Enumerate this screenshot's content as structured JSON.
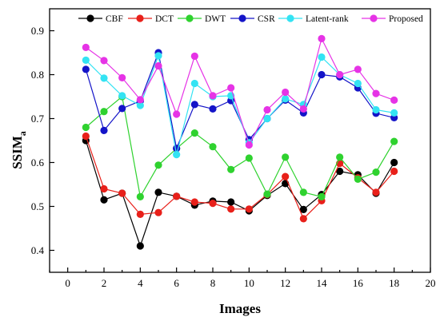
{
  "chart_data": {
    "type": "line",
    "xlabel": "Images",
    "ylabel": "SSIM",
    "ylabel_sub": "a",
    "xlim": [
      -1,
      20
    ],
    "ylim": [
      0.35,
      0.95
    ],
    "xticks": [
      "0",
      "2",
      "4",
      "6",
      "8",
      "10",
      "12",
      "14",
      "16",
      "18",
      "20"
    ],
    "yticks": [
      "0.4",
      "0.5",
      "0.6",
      "0.7",
      "0.8",
      "0.9"
    ],
    "grid": false,
    "legend_position": "top",
    "x": [
      1,
      2,
      3,
      4,
      5,
      6,
      7,
      8,
      9,
      10,
      11,
      12,
      13,
      14,
      15,
      16,
      17,
      18
    ],
    "series": [
      {
        "name": "CBF",
        "color": "#000000",
        "values": [
          0.65,
          0.515,
          0.53,
          0.41,
          0.532,
          0.523,
          0.503,
          0.512,
          0.51,
          0.49,
          0.525,
          0.552,
          0.493,
          0.527,
          0.58,
          0.572,
          0.53,
          0.6
        ]
      },
      {
        "name": "DCT",
        "color": "#e8201a",
        "values": [
          0.66,
          0.54,
          0.53,
          0.482,
          0.486,
          0.523,
          0.51,
          0.507,
          0.494,
          0.494,
          0.527,
          0.568,
          0.472,
          0.513,
          0.598,
          0.565,
          0.532,
          0.58
        ]
      },
      {
        "name": "DWT",
        "color": "#2fd22f",
        "values": [
          0.68,
          0.716,
          0.75,
          0.522,
          0.594,
          0.632,
          0.667,
          0.636,
          0.584,
          0.61,
          0.528,
          0.612,
          0.532,
          0.522,
          0.612,
          0.562,
          0.578,
          0.648
        ]
      },
      {
        "name": "CSR",
        "color": "#1414c8",
        "values": [
          0.812,
          0.673,
          0.723,
          0.74,
          0.85,
          0.632,
          0.732,
          0.722,
          0.741,
          0.652,
          0.7,
          0.742,
          0.713,
          0.8,
          0.795,
          0.77,
          0.712,
          0.702
        ]
      },
      {
        "name": "Latent-rank",
        "color": "#33e3f3",
        "values": [
          0.833,
          0.792,
          0.752,
          0.73,
          0.843,
          0.618,
          0.78,
          0.75,
          0.752,
          0.645,
          0.7,
          0.745,
          0.732,
          0.84,
          0.8,
          0.78,
          0.72,
          0.713
        ]
      },
      {
        "name": "Proposed",
        "color": "#e633e6",
        "values": [
          0.862,
          0.832,
          0.793,
          0.743,
          0.82,
          0.71,
          0.842,
          0.752,
          0.77,
          0.64,
          0.72,
          0.76,
          0.722,
          0.882,
          0.8,
          0.812,
          0.757,
          0.742
        ]
      }
    ]
  }
}
